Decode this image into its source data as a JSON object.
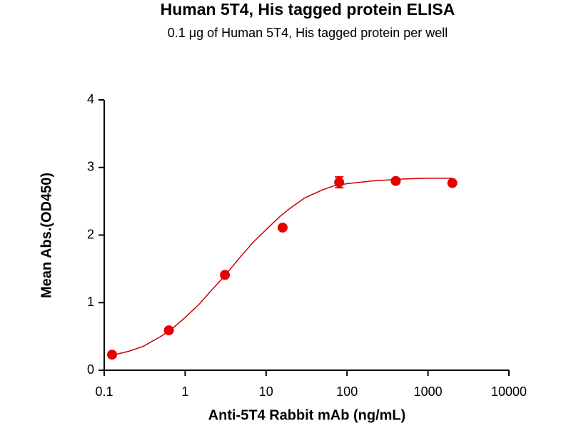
{
  "chart_data": {
    "type": "scatter",
    "title": "Human 5T4, His tagged protein ELISA",
    "subtitle": "0.1 μg of Human 5T4, His tagged protein per well",
    "x_label": "Anti-5T4 Rabbit mAb (ng/mL)",
    "y_label": "Mean Abs.(OD450)",
    "x_scale": "log",
    "xlim": [
      0.1,
      10000
    ],
    "xticks": [
      0.1,
      1,
      10,
      100,
      1000,
      10000
    ],
    "ylim": [
      0,
      4
    ],
    "yticks": [
      0,
      1,
      2,
      3,
      4
    ],
    "color": "#e60000",
    "x": [
      0.125,
      0.63,
      3.1,
      16,
      80,
      400,
      2000
    ],
    "values": [
      0.23,
      0.59,
      1.41,
      2.11,
      2.78,
      2.8,
      2.77
    ],
    "errors": [
      null,
      null,
      null,
      null,
      0.08,
      null,
      null
    ],
    "fit": {
      "color": "#cc0000",
      "x": [
        0.125,
        0.2,
        0.3,
        0.5,
        0.7,
        1,
        1.5,
        2,
        3,
        5,
        7,
        10,
        15,
        20,
        30,
        50,
        70,
        100,
        200,
        500,
        1000,
        2000
      ],
      "values": [
        0.22,
        0.28,
        0.35,
        0.5,
        0.62,
        0.78,
        0.98,
        1.15,
        1.38,
        1.7,
        1.9,
        2.08,
        2.28,
        2.4,
        2.55,
        2.67,
        2.73,
        2.76,
        2.8,
        2.83,
        2.84,
        2.84
      ]
    }
  }
}
